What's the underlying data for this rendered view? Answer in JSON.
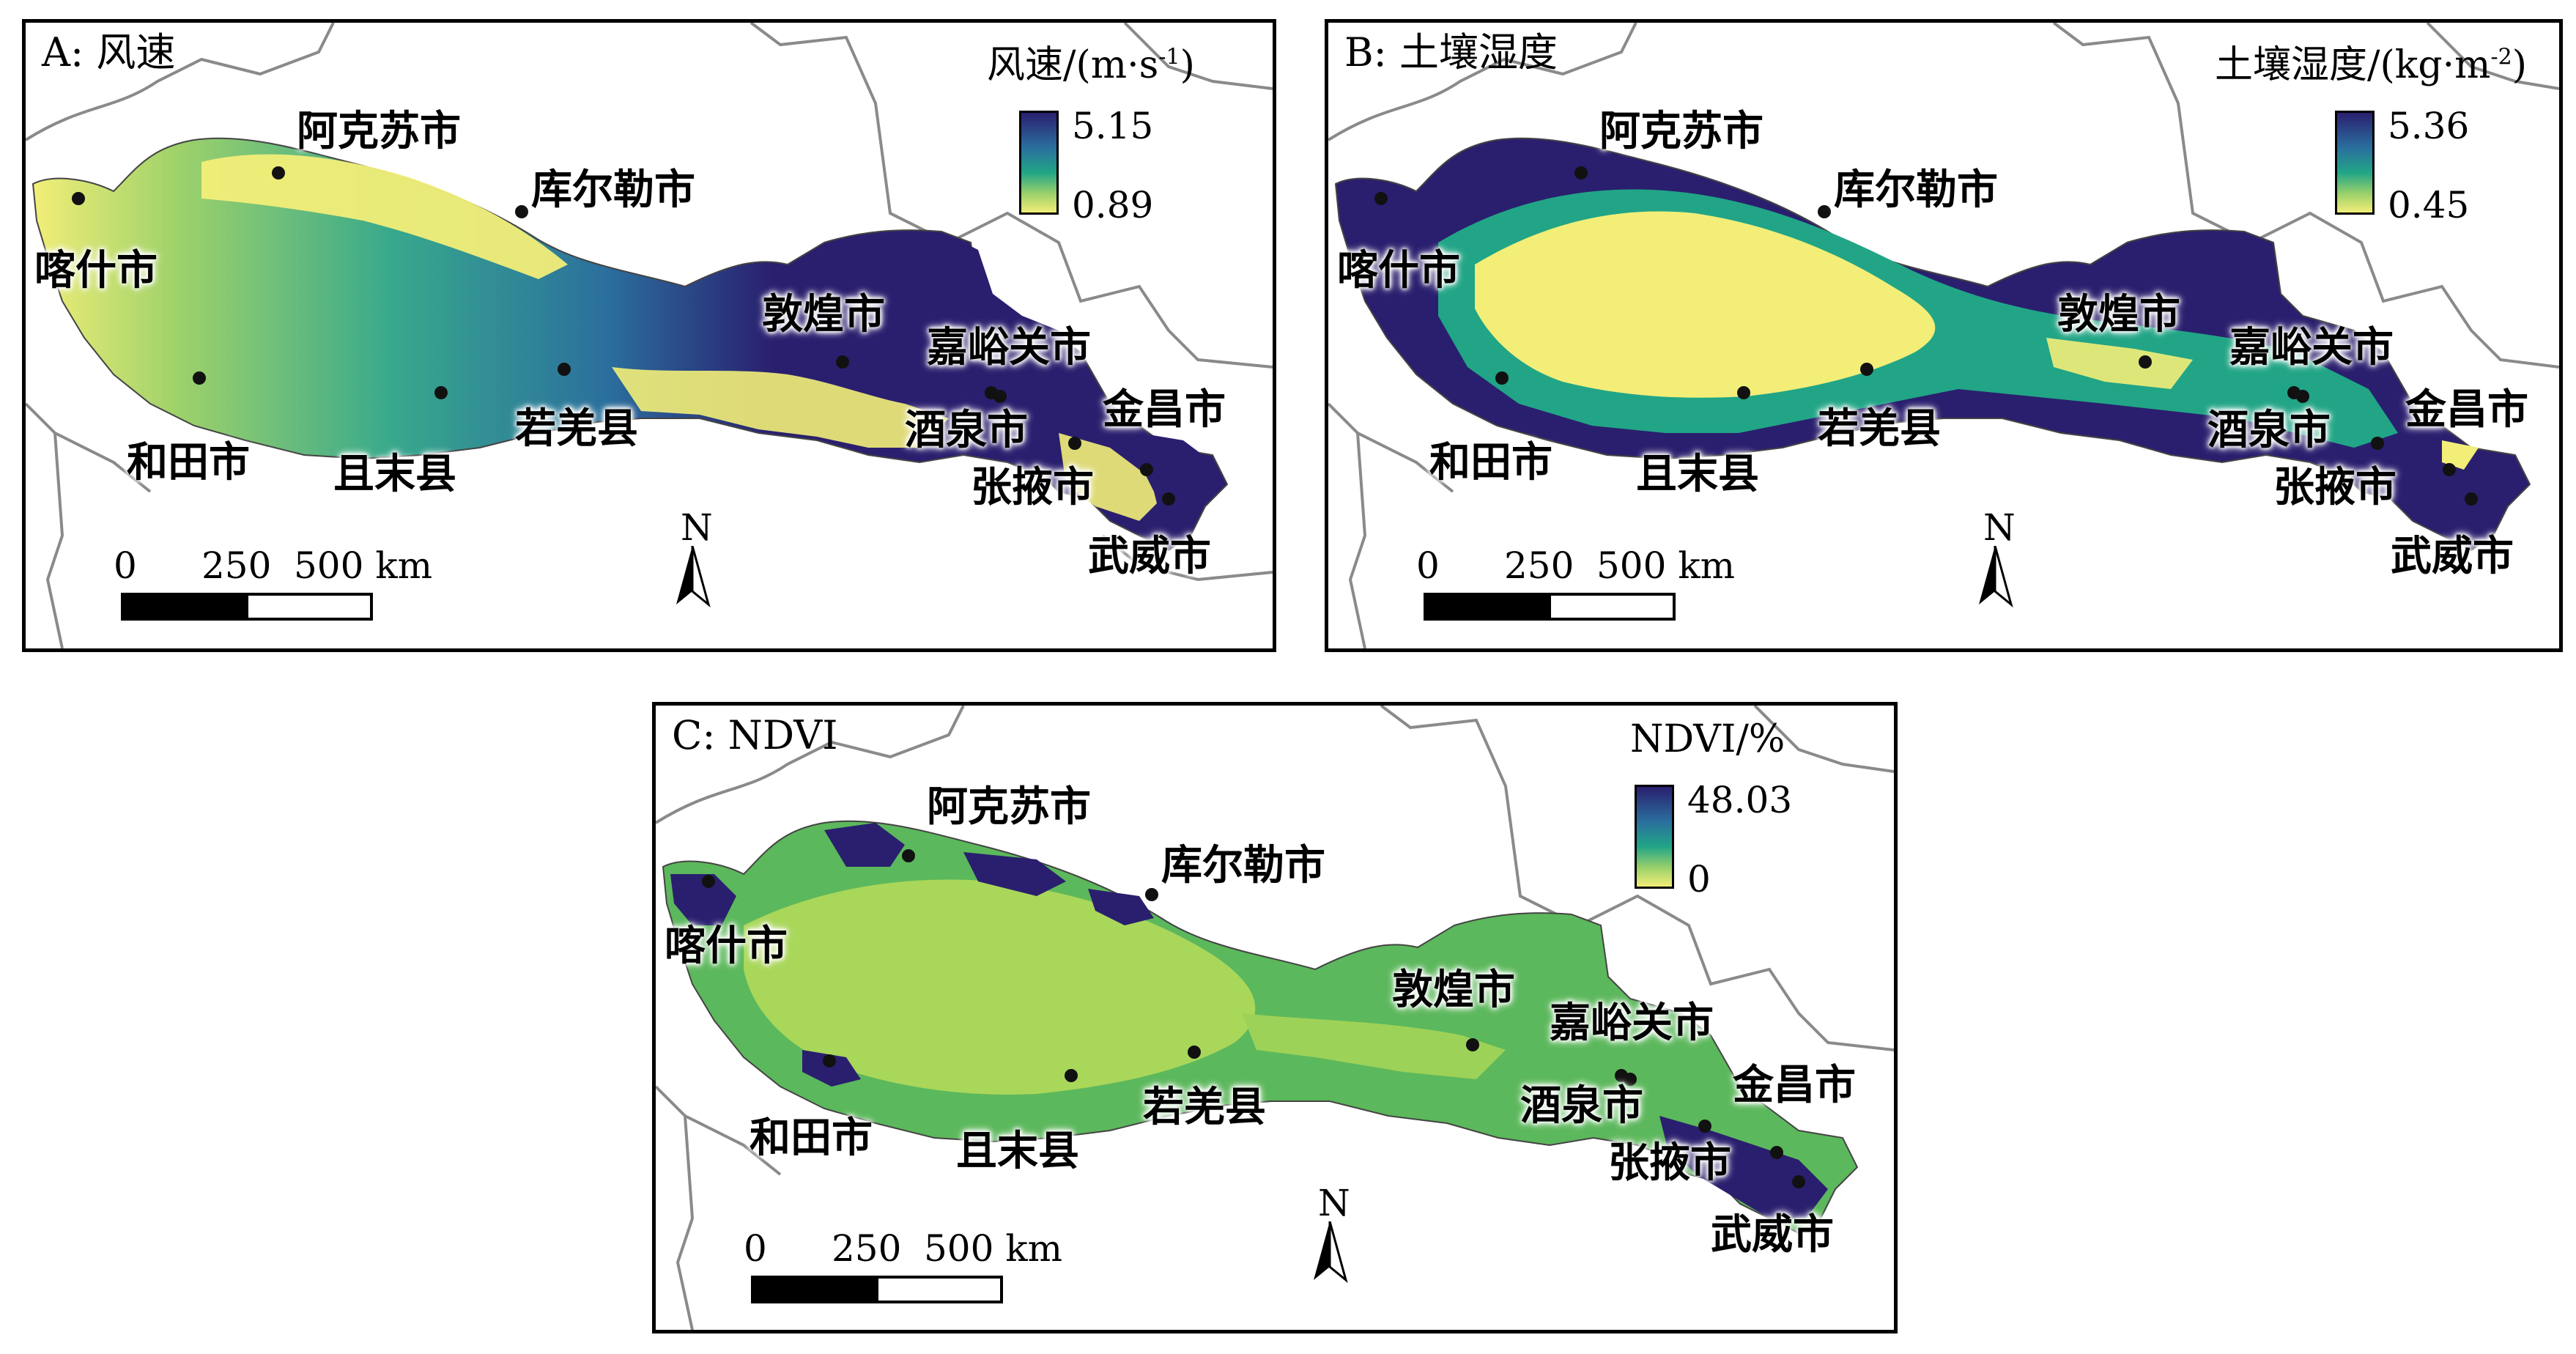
{
  "panels": [
    {
      "title": "A: 风速",
      "legend": {
        "title_main": "风速/(m·s",
        "title_sup": "-1",
        "title_end": ")",
        "max": "5.15",
        "min": "0.89"
      }
    },
    {
      "title": "B: 土壤湿度",
      "legend": {
        "title_main": "土壤湿度/(kg·m",
        "title_sup": "-2",
        "title_end": ")",
        "max": "5.36",
        "min": "0.45"
      }
    },
    {
      "title": "C: NDVI",
      "legend": {
        "title_main": "NDVI/%",
        "title_sup": "",
        "title_end": "",
        "max": "48.03",
        "min": "0"
      }
    }
  ],
  "cities": {
    "aksu": "阿克苏市",
    "korla": "库尔勒市",
    "kashgar": "喀什市",
    "dunhuang": "敦煌市",
    "jiayuguan": "嘉峪关市",
    "jiuquan": "酒泉市",
    "jinchang": "金昌市",
    "zhangye": "张掖市",
    "wuwei": "武威市",
    "hotan": "和田市",
    "qiemo": "且末县",
    "ruoqiang": "若羌县"
  },
  "scale": {
    "l0": "0",
    "l1": "250",
    "l2": "500 km"
  },
  "north": "N",
  "colors": {
    "low": "#f2ee78",
    "mid": "#21a586",
    "high": "#2a1f6e",
    "boundary": "#8a8a8a"
  }
}
